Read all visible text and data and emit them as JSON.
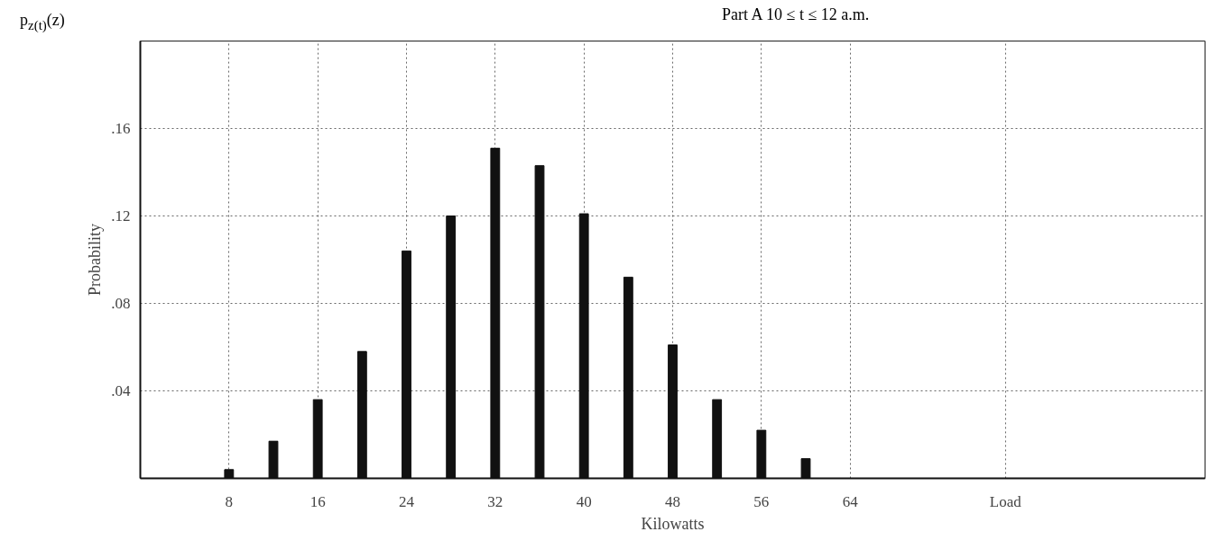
{
  "chart_data": {
    "type": "bar",
    "title": "Part A  10 ≤ t ≤ 12 a.m.",
    "xlabel": "Kilowatts",
    "ylabel": "Probability",
    "annotations": [
      "p$_{z(t)}$(z)"
    ],
    "x": [
      8,
      12,
      16,
      20,
      24,
      28,
      32,
      36,
      40,
      44,
      48,
      52,
      56,
      60
    ],
    "values": [
      0.004,
      0.017,
      0.036,
      0.058,
      0.104,
      0.12,
      0.151,
      0.143,
      0.121,
      0.092,
      0.061,
      0.036,
      0.022,
      0.009
    ],
    "color": "#111111",
    "xlim": [
      0,
      96
    ],
    "ylim": [
      0,
      0.2
    ],
    "xticks": [
      8,
      16,
      24,
      32,
      40,
      48,
      56,
      64,
      {
        "value": 78,
        "label": "Load"
      }
    ],
    "yticks": [
      {
        "value": 0.04,
        "label": ".04"
      },
      {
        "value": 0.08,
        "label": ".08"
      },
      {
        "value": 0.12,
        "label": ".12"
      },
      {
        "value": 0.16,
        "label": ".16"
      }
    ],
    "grid": true
  }
}
